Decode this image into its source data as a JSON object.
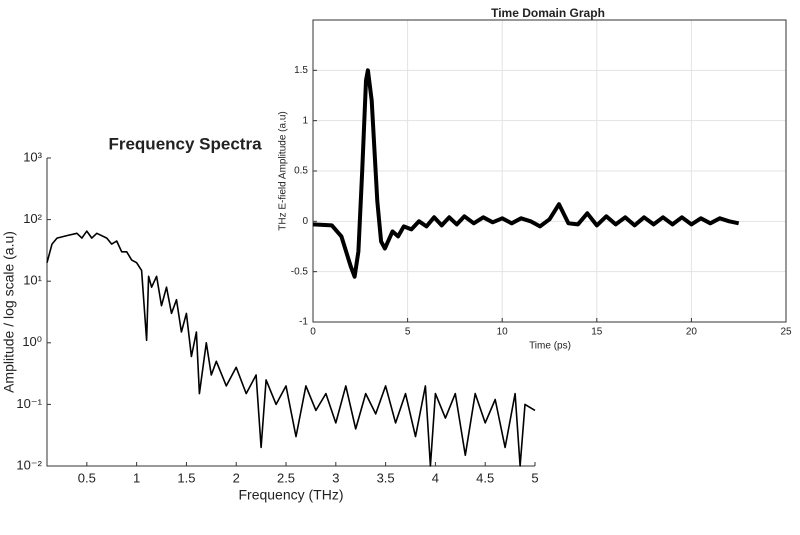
{
  "chart_data": [
    {
      "type": "line",
      "title": "Frequency Spectra",
      "xlabel": "Frequency (THz)",
      "ylabel": "Amplitude / log scale (a.u)",
      "log_y": true,
      "grid": false,
      "color": "#000000",
      "xlim": [
        0.1,
        5
      ],
      "xticks": [
        0.5,
        1,
        1.5,
        2,
        2.5,
        3,
        3.5,
        4,
        4.5,
        5
      ],
      "ylim": [
        0.01,
        1000
      ],
      "yticks": [
        {
          "value": 0.01,
          "label": "10⁻²"
        },
        {
          "value": 0.1,
          "label": "10⁻¹"
        },
        {
          "value": 1,
          "label": "10⁰"
        },
        {
          "value": 10,
          "label": "10¹"
        },
        {
          "value": 100,
          "label": "10²"
        },
        {
          "value": 1000,
          "label": "10³"
        }
      ],
      "x": [
        0.1,
        0.15,
        0.2,
        0.3,
        0.4,
        0.45,
        0.5,
        0.55,
        0.6,
        0.7,
        0.75,
        0.8,
        0.85,
        0.9,
        0.95,
        1.0,
        1.05,
        1.1,
        1.12,
        1.15,
        1.2,
        1.25,
        1.3,
        1.35,
        1.4,
        1.45,
        1.5,
        1.55,
        1.6,
        1.63,
        1.7,
        1.75,
        1.8,
        1.9,
        2.0,
        2.1,
        2.2,
        2.25,
        2.3,
        2.4,
        2.5,
        2.6,
        2.7,
        2.8,
        2.9,
        3.0,
        3.1,
        3.2,
        3.3,
        3.4,
        3.5,
        3.6,
        3.7,
        3.8,
        3.9,
        3.95,
        4.0,
        4.1,
        4.2,
        4.3,
        4.4,
        4.5,
        4.6,
        4.7,
        4.8,
        4.85,
        4.9,
        5.0
      ],
      "values": [
        20,
        40,
        50,
        55,
        60,
        50,
        65,
        50,
        60,
        50,
        40,
        45,
        30,
        30,
        22,
        20,
        15,
        1.1,
        12,
        8,
        12,
        4,
        8,
        3,
        5,
        1.5,
        3,
        0.6,
        1.5,
        0.15,
        1,
        0.3,
        0.5,
        0.2,
        0.4,
        0.15,
        0.3,
        0.02,
        0.25,
        0.1,
        0.2,
        0.03,
        0.2,
        0.08,
        0.15,
        0.05,
        0.2,
        0.04,
        0.15,
        0.07,
        0.2,
        0.05,
        0.15,
        0.03,
        0.2,
        0.01,
        0.15,
        0.06,
        0.15,
        0.015,
        0.15,
        0.05,
        0.12,
        0.02,
        0.15,
        0.01,
        0.1,
        0.08
      ]
    },
    {
      "type": "line",
      "title": "Time Domain Graph",
      "xlabel": "Time (ps)",
      "ylabel": "THz E-field Amplitude (a.u)",
      "log_y": false,
      "grid": true,
      "color": "#000000",
      "xlim": [
        0,
        25
      ],
      "xticks": [
        0,
        5,
        10,
        15,
        20,
        25
      ],
      "ylim": [
        -1,
        2
      ],
      "yticks": [
        -1,
        -0.5,
        0,
        0.5,
        1,
        1.5
      ],
      "x": [
        0,
        1,
        1.5,
        2.0,
        2.2,
        2.4,
        2.6,
        2.8,
        2.9,
        3.1,
        3.4,
        3.6,
        3.8,
        4.2,
        4.5,
        4.8,
        5.2,
        5.6,
        6,
        6.4,
        6.8,
        7.2,
        7.6,
        8,
        8.5,
        9,
        9.5,
        10,
        10.5,
        11,
        11.5,
        12,
        12.5,
        13,
        13.5,
        14,
        14.5,
        15,
        15.5,
        16,
        16.5,
        17,
        17.5,
        18,
        18.5,
        19,
        19.5,
        20,
        20.5,
        21,
        21.5,
        22,
        22.5
      ],
      "values": [
        -0.03,
        -0.04,
        -0.15,
        -0.45,
        -0.55,
        -0.3,
        0.5,
        1.4,
        1.5,
        1.2,
        0.2,
        -0.2,
        -0.27,
        -0.1,
        -0.15,
        -0.05,
        -0.08,
        0.0,
        -0.05,
        0.04,
        -0.04,
        0.04,
        -0.03,
        0.05,
        -0.02,
        0.04,
        -0.01,
        0.03,
        -0.02,
        0.03,
        0.0,
        -0.05,
        0.02,
        0.17,
        -0.02,
        -0.03,
        0.08,
        -0.04,
        0.05,
        -0.03,
        0.04,
        -0.04,
        0.04,
        -0.03,
        0.04,
        -0.03,
        0.04,
        -0.03,
        0.03,
        -0.02,
        0.03,
        0.0,
        -0.02
      ]
    }
  ]
}
